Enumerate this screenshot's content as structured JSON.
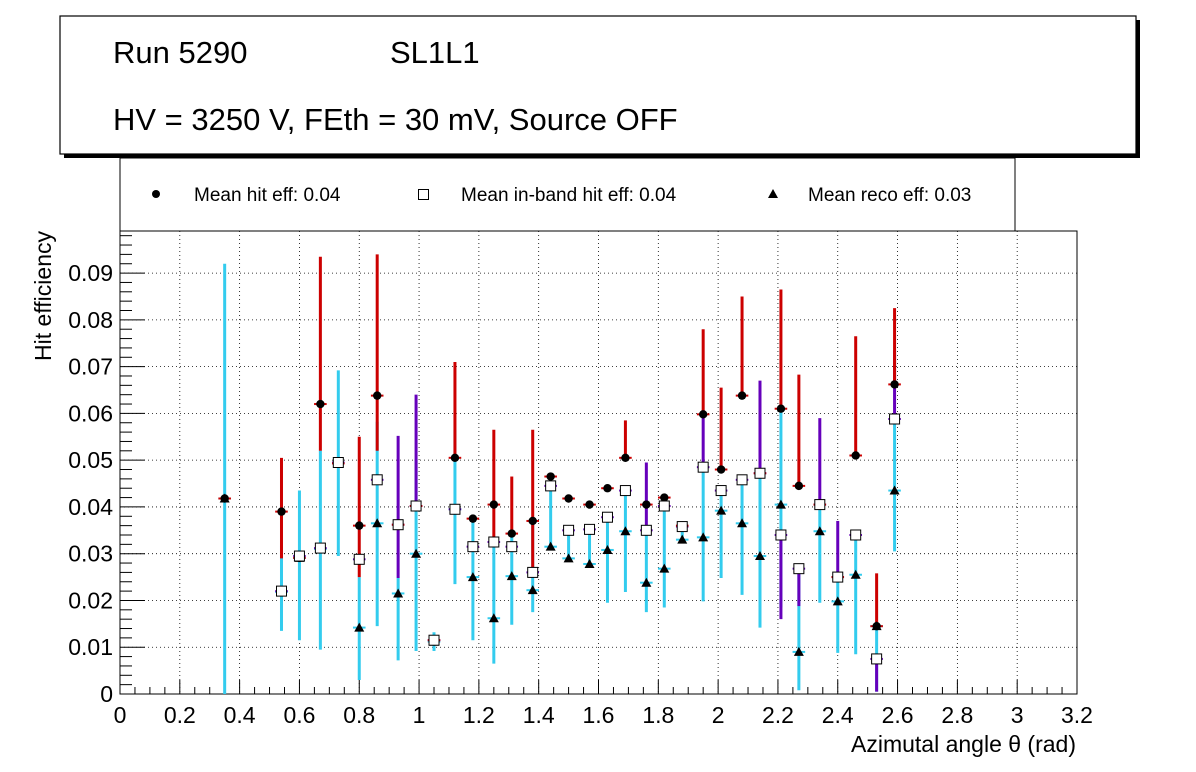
{
  "info_box": {
    "run": "Run 5290",
    "layer": "SL1L1",
    "conditions": "HV = 3250 V, FEth = 30 mV, Source OFF"
  },
  "colors": {
    "hit_err": "#cc0000",
    "inband_err": "#6600bb",
    "reco_err": "#33ccee",
    "marker": "#000000",
    "grid": "#000000"
  },
  "chart_data": {
    "type": "scatter",
    "xlabel": "Azimutal angle θ (rad)",
    "ylabel": "Hit efficiency",
    "xlim": [
      0,
      3.2
    ],
    "ylim": [
      0,
      0.099
    ],
    "xticks": [
      0,
      0.2,
      0.4,
      0.6,
      0.8,
      1,
      1.2,
      1.4,
      1.6,
      1.8,
      2,
      2.2,
      2.4,
      2.6,
      2.8,
      3,
      3.2
    ],
    "xtick_labels": [
      "0",
      "0.2",
      "0.4",
      "0.6",
      "0.8",
      "1",
      "1.2",
      "1.4",
      "1.6",
      "1.8",
      "2",
      "2.2",
      "2.4",
      "2.6",
      "2.8",
      "3",
      "3.2"
    ],
    "yticks": [
      0,
      0.01,
      0.02,
      0.03,
      0.04,
      0.05,
      0.06,
      0.07,
      0.08,
      0.09
    ],
    "ytick_labels": [
      "0",
      "0.01",
      "0.02",
      "0.03",
      "0.04",
      "0.05",
      "0.06",
      "0.07",
      "0.08",
      "0.09"
    ],
    "bin_half_width": 0.021,
    "grid": true,
    "legend": {
      "placement": "top"
    },
    "series": [
      {
        "name": "Mean hit  eff: 0.04",
        "marker": "circle",
        "points": [
          {
            "x": 0.35,
            "y": 0.0418,
            "lo": 0.0418,
            "hi": 0.0418
          },
          {
            "x": 0.54,
            "y": 0.039,
            "lo": 0.029,
            "hi": 0.0505
          },
          {
            "x": 0.6,
            "y": 0.0291,
            "lo": 0.0291,
            "hi": 0.0291
          },
          {
            "x": 0.67,
            "y": 0.062,
            "lo": 0.052,
            "hi": 0.0935
          },
          {
            "x": 0.73,
            "y": 0.0493,
            "lo": 0.0493,
            "hi": 0.0493
          },
          {
            "x": 0.8,
            "y": 0.036,
            "lo": 0.025,
            "hi": 0.055
          },
          {
            "x": 0.86,
            "y": 0.0638,
            "lo": 0.052,
            "hi": 0.094
          },
          {
            "x": 0.93,
            "y": 0.0362,
            "lo": 0.0362,
            "hi": 0.0362
          },
          {
            "x": 0.99,
            "y": 0.0402,
            "lo": 0.0402,
            "hi": 0.0402
          },
          {
            "x": 1.05,
            "y": 0.0115,
            "lo": 0.0115,
            "hi": 0.0115
          },
          {
            "x": 1.12,
            "y": 0.0505,
            "lo": 0.0505,
            "hi": 0.071
          },
          {
            "x": 1.18,
            "y": 0.0375,
            "lo": 0.0375,
            "hi": 0.0375
          },
          {
            "x": 1.25,
            "y": 0.0405,
            "lo": 0.032,
            "hi": 0.0565
          },
          {
            "x": 1.31,
            "y": 0.0343,
            "lo": 0.0343,
            "hi": 0.0465
          },
          {
            "x": 1.38,
            "y": 0.037,
            "lo": 0.025,
            "hi": 0.0565
          },
          {
            "x": 1.44,
            "y": 0.0465,
            "lo": 0.0465,
            "hi": 0.0465
          },
          {
            "x": 1.5,
            "y": 0.0418,
            "lo": 0.0418,
            "hi": 0.0418
          },
          {
            "x": 1.57,
            "y": 0.0405,
            "lo": 0.0405,
            "hi": 0.0405
          },
          {
            "x": 1.63,
            "y": 0.044,
            "lo": 0.044,
            "hi": 0.044
          },
          {
            "x": 1.69,
            "y": 0.0505,
            "lo": 0.0505,
            "hi": 0.0585
          },
          {
            "x": 1.76,
            "y": 0.0405,
            "lo": 0.0405,
            "hi": 0.0405
          },
          {
            "x": 1.82,
            "y": 0.042,
            "lo": 0.042,
            "hi": 0.042
          },
          {
            "x": 1.88,
            "y": 0.036,
            "lo": 0.036,
            "hi": 0.036
          },
          {
            "x": 1.95,
            "y": 0.0598,
            "lo": 0.0598,
            "hi": 0.078
          },
          {
            "x": 2.01,
            "y": 0.048,
            "lo": 0.048,
            "hi": 0.0655
          },
          {
            "x": 2.08,
            "y": 0.0638,
            "lo": 0.0638,
            "hi": 0.085
          },
          {
            "x": 2.14,
            "y": 0.0472,
            "lo": 0.0472,
            "hi": 0.0472
          },
          {
            "x": 2.21,
            "y": 0.061,
            "lo": 0.061,
            "hi": 0.0865
          },
          {
            "x": 2.27,
            "y": 0.0445,
            "lo": 0.0445,
            "hi": 0.0683
          },
          {
            "x": 2.34,
            "y": 0.0405,
            "lo": 0.0405,
            "hi": 0.0405
          },
          {
            "x": 2.4,
            "y": 0.025,
            "lo": 0.025,
            "hi": 0.025
          },
          {
            "x": 2.46,
            "y": 0.051,
            "lo": 0.051,
            "hi": 0.0765
          },
          {
            "x": 2.53,
            "y": 0.0145,
            "lo": 0.0145,
            "hi": 0.0258
          },
          {
            "x": 2.59,
            "y": 0.0662,
            "lo": 0.0662,
            "hi": 0.0825
          }
        ]
      },
      {
        "name": "Mean in-band hit eff: 0.04",
        "marker": "open-square",
        "points": [
          {
            "x": 0.54,
            "y": 0.022,
            "lo": 0.022,
            "hi": 0.022
          },
          {
            "x": 0.6,
            "y": 0.0295,
            "lo": 0.0295,
            "hi": 0.0295
          },
          {
            "x": 0.67,
            "y": 0.0312,
            "lo": 0.0312,
            "hi": 0.0312
          },
          {
            "x": 0.73,
            "y": 0.0495,
            "lo": 0.0495,
            "hi": 0.0495
          },
          {
            "x": 0.8,
            "y": 0.0288,
            "lo": 0.0288,
            "hi": 0.0288
          },
          {
            "x": 0.86,
            "y": 0.0458,
            "lo": 0.0458,
            "hi": 0.0458
          },
          {
            "x": 0.93,
            "y": 0.0362,
            "lo": 0.0248,
            "hi": 0.0552
          },
          {
            "x": 0.99,
            "y": 0.0402,
            "lo": 0.0402,
            "hi": 0.064
          },
          {
            "x": 1.05,
            "y": 0.0115,
            "lo": 0.0115,
            "hi": 0.0115
          },
          {
            "x": 1.12,
            "y": 0.0395,
            "lo": 0.0395,
            "hi": 0.0395
          },
          {
            "x": 1.18,
            "y": 0.0315,
            "lo": 0.0315,
            "hi": 0.0315
          },
          {
            "x": 1.25,
            "y": 0.0325,
            "lo": 0.0325,
            "hi": 0.0325
          },
          {
            "x": 1.31,
            "y": 0.0315,
            "lo": 0.0315,
            "hi": 0.0315
          },
          {
            "x": 1.38,
            "y": 0.026,
            "lo": 0.026,
            "hi": 0.026
          },
          {
            "x": 1.44,
            "y": 0.0445,
            "lo": 0.0445,
            "hi": 0.0445
          },
          {
            "x": 1.5,
            "y": 0.035,
            "lo": 0.035,
            "hi": 0.035
          },
          {
            "x": 1.57,
            "y": 0.0352,
            "lo": 0.0352,
            "hi": 0.0352
          },
          {
            "x": 1.63,
            "y": 0.0378,
            "lo": 0.0378,
            "hi": 0.0378
          },
          {
            "x": 1.69,
            "y": 0.0435,
            "lo": 0.0435,
            "hi": 0.0435
          },
          {
            "x": 1.76,
            "y": 0.035,
            "lo": 0.035,
            "hi": 0.0495
          },
          {
            "x": 1.82,
            "y": 0.0402,
            "lo": 0.0402,
            "hi": 0.0402
          },
          {
            "x": 1.88,
            "y": 0.0358,
            "lo": 0.0358,
            "hi": 0.0358
          },
          {
            "x": 1.95,
            "y": 0.0485,
            "lo": 0.0485,
            "hi": 0.0598
          },
          {
            "x": 2.01,
            "y": 0.0435,
            "lo": 0.0435,
            "hi": 0.0435
          },
          {
            "x": 2.08,
            "y": 0.0458,
            "lo": 0.0458,
            "hi": 0.0458
          },
          {
            "x": 2.14,
            "y": 0.0472,
            "lo": 0.0472,
            "hi": 0.067
          },
          {
            "x": 2.21,
            "y": 0.034,
            "lo": 0.016,
            "hi": 0.034
          },
          {
            "x": 2.27,
            "y": 0.0268,
            "lo": 0.0188,
            "hi": 0.0268
          },
          {
            "x": 2.34,
            "y": 0.0405,
            "lo": 0.0405,
            "hi": 0.059
          },
          {
            "x": 2.4,
            "y": 0.025,
            "lo": 0.025,
            "hi": 0.037
          },
          {
            "x": 2.46,
            "y": 0.034,
            "lo": 0.034,
            "hi": 0.034
          },
          {
            "x": 2.53,
            "y": 0.0075,
            "lo": 0.0005,
            "hi": 0.0075
          },
          {
            "x": 2.59,
            "y": 0.0588,
            "lo": 0.0588,
            "hi": 0.0735
          }
        ]
      },
      {
        "name": "Mean reco eff: 0.03",
        "marker": "triangle",
        "points": [
          {
            "x": 0.35,
            "y": 0.0418,
            "lo": 0,
            "hi": 0.092
          },
          {
            "x": 0.54,
            "y": 0.0218,
            "lo": 0.0135,
            "hi": 0.0318
          },
          {
            "x": 0.6,
            "y": 0.0291,
            "lo": 0.0115,
            "hi": 0.0435
          },
          {
            "x": 0.67,
            "y": 0.031,
            "lo": 0.0095,
            "hi": 0.052
          },
          {
            "x": 0.73,
            "y": 0.0495,
            "lo": 0.0295,
            "hi": 0.0692
          },
          {
            "x": 0.8,
            "y": 0.0142,
            "lo": 0.003,
            "hi": 0.025
          },
          {
            "x": 0.86,
            "y": 0.0365,
            "lo": 0.0145,
            "hi": 0.0582
          },
          {
            "x": 0.93,
            "y": 0.0215,
            "lo": 0.0072,
            "hi": 0.0248
          },
          {
            "x": 0.99,
            "y": 0.03,
            "lo": 0.0092,
            "hi": 0.0502
          },
          {
            "x": 1.05,
            "y": 0.0112,
            "lo": 0.0092,
            "hi": 0.0132
          },
          {
            "x": 1.12,
            "y": 0.0395,
            "lo": 0.0235,
            "hi": 0.0565
          },
          {
            "x": 1.18,
            "y": 0.025,
            "lo": 0.0115,
            "hi": 0.0375
          },
          {
            "x": 1.25,
            "y": 0.0162,
            "lo": 0.0065,
            "hi": 0.032
          },
          {
            "x": 1.31,
            "y": 0.0252,
            "lo": 0.0148,
            "hi": 0.0343
          },
          {
            "x": 1.38,
            "y": 0.0222,
            "lo": 0.0175,
            "hi": 0.037
          },
          {
            "x": 1.44,
            "y": 0.0315,
            "lo": 0.0315,
            "hi": 0.0445
          },
          {
            "x": 1.5,
            "y": 0.029,
            "lo": 0.029,
            "hi": 0.035
          },
          {
            "x": 1.57,
            "y": 0.0278,
            "lo": 0.0278,
            "hi": 0.0352
          },
          {
            "x": 1.63,
            "y": 0.0308,
            "lo": 0.0195,
            "hi": 0.0378
          },
          {
            "x": 1.69,
            "y": 0.0348,
            "lo": 0.0218,
            "hi": 0.0435
          },
          {
            "x": 1.76,
            "y": 0.0238,
            "lo": 0.0175,
            "hi": 0.035
          },
          {
            "x": 1.82,
            "y": 0.0268,
            "lo": 0.0185,
            "hi": 0.0402
          },
          {
            "x": 1.88,
            "y": 0.033,
            "lo": 0.033,
            "hi": 0.0358
          },
          {
            "x": 1.95,
            "y": 0.0335,
            "lo": 0.0198,
            "hi": 0.0485
          },
          {
            "x": 2.01,
            "y": 0.0392,
            "lo": 0.0248,
            "hi": 0.0435
          },
          {
            "x": 2.08,
            "y": 0.0365,
            "lo": 0.0212,
            "hi": 0.0458
          },
          {
            "x": 2.14,
            "y": 0.0295,
            "lo": 0.0142,
            "hi": 0.0472
          },
          {
            "x": 2.21,
            "y": 0.0405,
            "lo": 0.0185,
            "hi": 0.061
          },
          {
            "x": 2.27,
            "y": 0.009,
            "lo": 0.0008,
            "hi": 0.0268
          },
          {
            "x": 2.34,
            "y": 0.0348,
            "lo": 0.0195,
            "hi": 0.0405
          },
          {
            "x": 2.4,
            "y": 0.0198,
            "lo": 0.0088,
            "hi": 0.025
          },
          {
            "x": 2.46,
            "y": 0.0255,
            "lo": 0.0085,
            "hi": 0.034
          },
          {
            "x": 2.53,
            "y": 0.0145,
            "lo": 0.0005,
            "hi": 0.0145
          },
          {
            "x": 2.59,
            "y": 0.0435,
            "lo": 0.0305,
            "hi": 0.0588
          }
        ]
      }
    ]
  }
}
